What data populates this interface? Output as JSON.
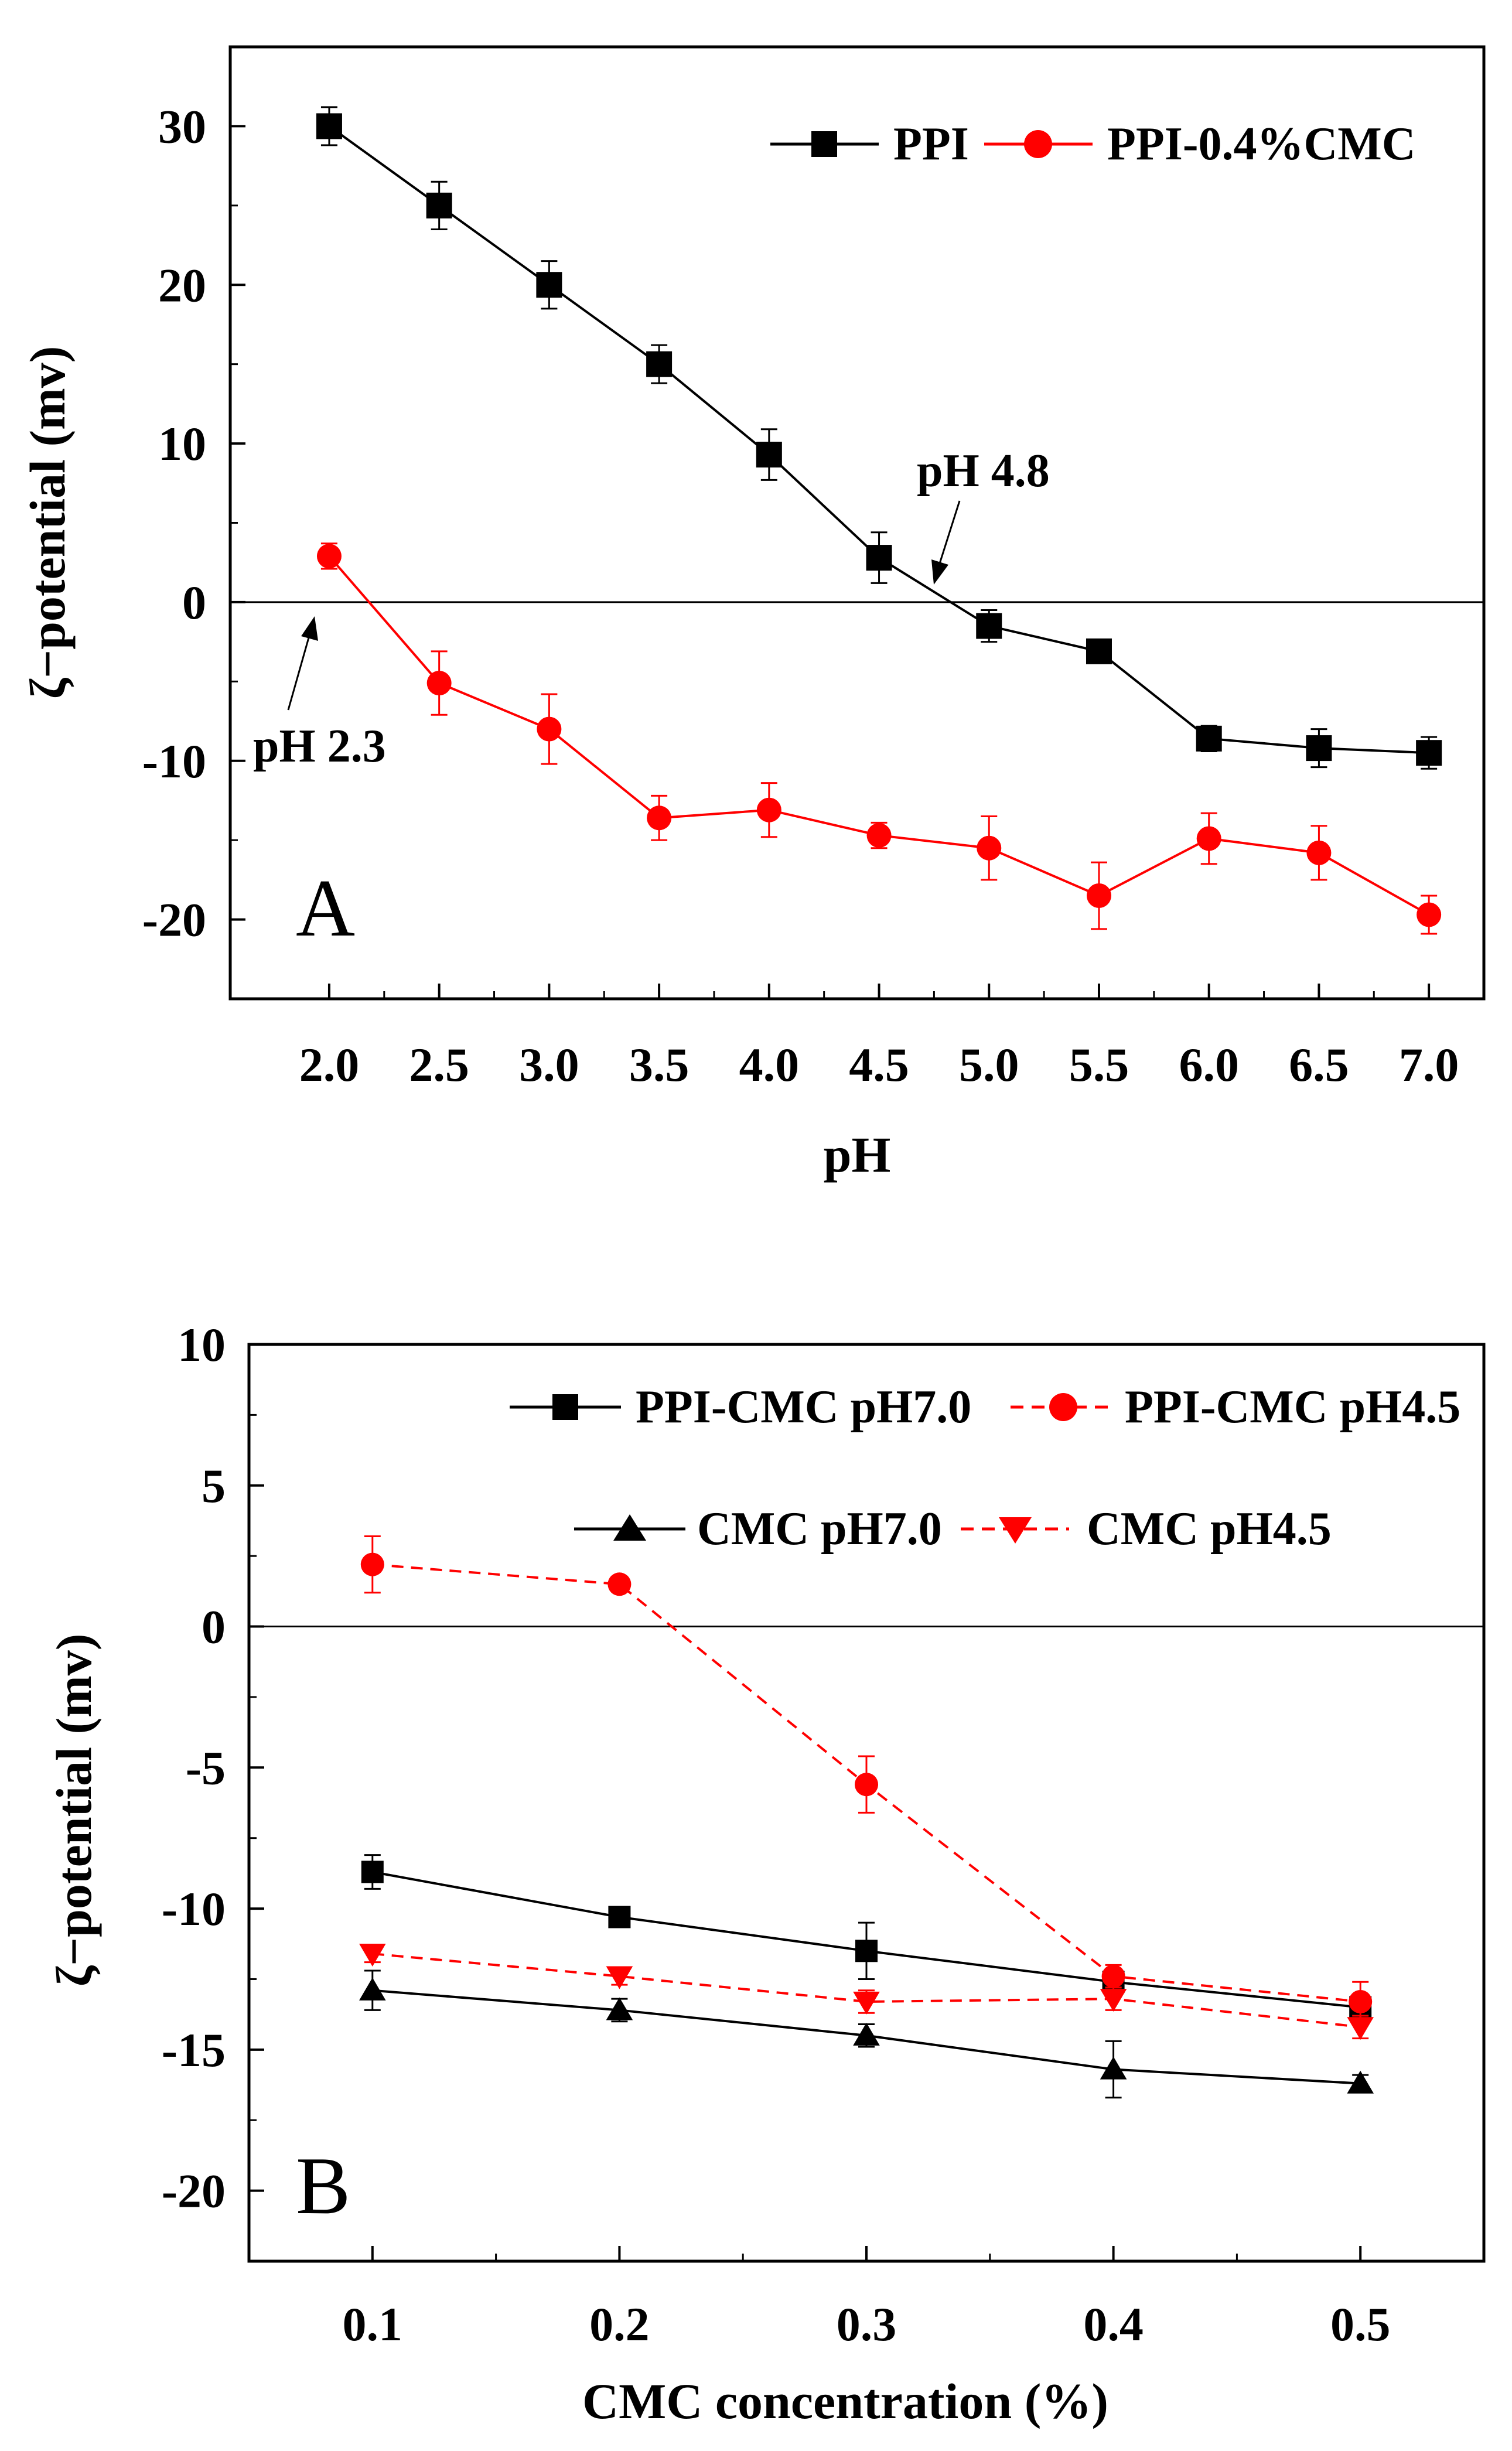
{
  "chart_data": [
    {
      "type": "line",
      "panel_label": "A",
      "xlabel": "pH",
      "ylabel": "ζ−potential (mv)",
      "x": [
        2.0,
        2.5,
        3.0,
        3.5,
        4.0,
        4.5,
        5.0,
        5.5,
        6.0,
        6.5,
        7.0
      ],
      "x_tick_labels": [
        "2.0",
        "2.5",
        "3.0",
        "3.5",
        "4.0",
        "4.5",
        "5.0",
        "5.5",
        "6.0",
        "6.5",
        "7.0"
      ],
      "y_ticks": [
        -20,
        -10,
        0,
        10,
        20,
        30
      ],
      "y_tick_labels": [
        "-20",
        "-10",
        "0",
        "10",
        "20",
        "30"
      ],
      "xlim": [
        1.55,
        7.25
      ],
      "ylim": [
        -25,
        35
      ],
      "zero_line": true,
      "legend_position": "top-right",
      "series": [
        {
          "name": "PPI",
          "color": "#000000",
          "marker": "square",
          "dash": "solid",
          "values": [
            30.0,
            25.0,
            20.0,
            15.0,
            9.3,
            2.8,
            -1.5,
            -3.1,
            -8.6,
            -9.2,
            -9.5
          ],
          "errors": [
            1.2,
            1.5,
            1.5,
            1.2,
            1.6,
            1.6,
            1.0,
            0.6,
            0.8,
            1.2,
            1.0
          ]
        },
        {
          "name": "PPI-0.4%CMC",
          "color": "#ff0000",
          "marker": "circle",
          "dash": "solid",
          "values": [
            2.9,
            -5.1,
            -8.0,
            -13.6,
            -13.1,
            -14.7,
            -15.5,
            -18.5,
            -14.9,
            -15.8,
            -19.7
          ],
          "errors": [
            0.8,
            2.0,
            2.2,
            1.4,
            1.7,
            0.8,
            2.0,
            2.1,
            1.6,
            1.7,
            1.2
          ]
        }
      ],
      "annotations": [
        {
          "text": "pH 4.8",
          "x": 4.8,
          "y": 0
        },
        {
          "text": "pH 2.3",
          "x": 2.13,
          "y": -1
        }
      ]
    },
    {
      "type": "line",
      "panel_label": "B",
      "xlabel": "CMC concentration (%)",
      "ylabel": "ζ−potential (mv)",
      "x": [
        0.1,
        0.2,
        0.3,
        0.4,
        0.5
      ],
      "x_tick_labels": [
        "0.1",
        "0.2",
        "0.3",
        "0.4",
        "0.5"
      ],
      "y_ticks": [
        -20,
        -15,
        -10,
        -5,
        0,
        5,
        10
      ],
      "y_tick_labels": [
        "-20",
        "-15",
        "-10",
        "-5",
        "0",
        "5",
        "10"
      ],
      "xlim": [
        0.05,
        0.55
      ],
      "ylim": [
        -22.5,
        10
      ],
      "zero_line": true,
      "legend_position": "top-right",
      "series": [
        {
          "name": "PPI-CMC pH7.0",
          "color": "#000000",
          "marker": "square",
          "dash": "solid",
          "values": [
            -8.7,
            -10.3,
            -11.5,
            -12.6,
            -13.5
          ],
          "errors": [
            0.6,
            0.3,
            1.0,
            0.4,
            0.3
          ]
        },
        {
          "name": "PPI-CMC pH4.5",
          "color": "#ff0000",
          "marker": "circle",
          "dash": "dashed",
          "values": [
            2.2,
            1.5,
            -5.6,
            -12.4,
            -13.3
          ],
          "errors": [
            1.0,
            0.2,
            1.0,
            0.4,
            0.7
          ]
        },
        {
          "name": "CMC pH7.0",
          "color": "#000000",
          "marker": "triangle-up",
          "dash": "solid",
          "values": [
            -12.9,
            -13.6,
            -14.5,
            -15.7,
            -16.2
          ],
          "errors": [
            0.7,
            0.4,
            0.4,
            1.0,
            0.3
          ]
        },
        {
          "name": "CMC pH4.5",
          "color": "#ff0000",
          "marker": "triangle-down",
          "dash": "dashed",
          "values": [
            -11.6,
            -12.4,
            -13.3,
            -13.2,
            -14.2
          ],
          "errors": [
            0.3,
            0.3,
            0.4,
            0.4,
            0.4
          ]
        }
      ]
    }
  ]
}
